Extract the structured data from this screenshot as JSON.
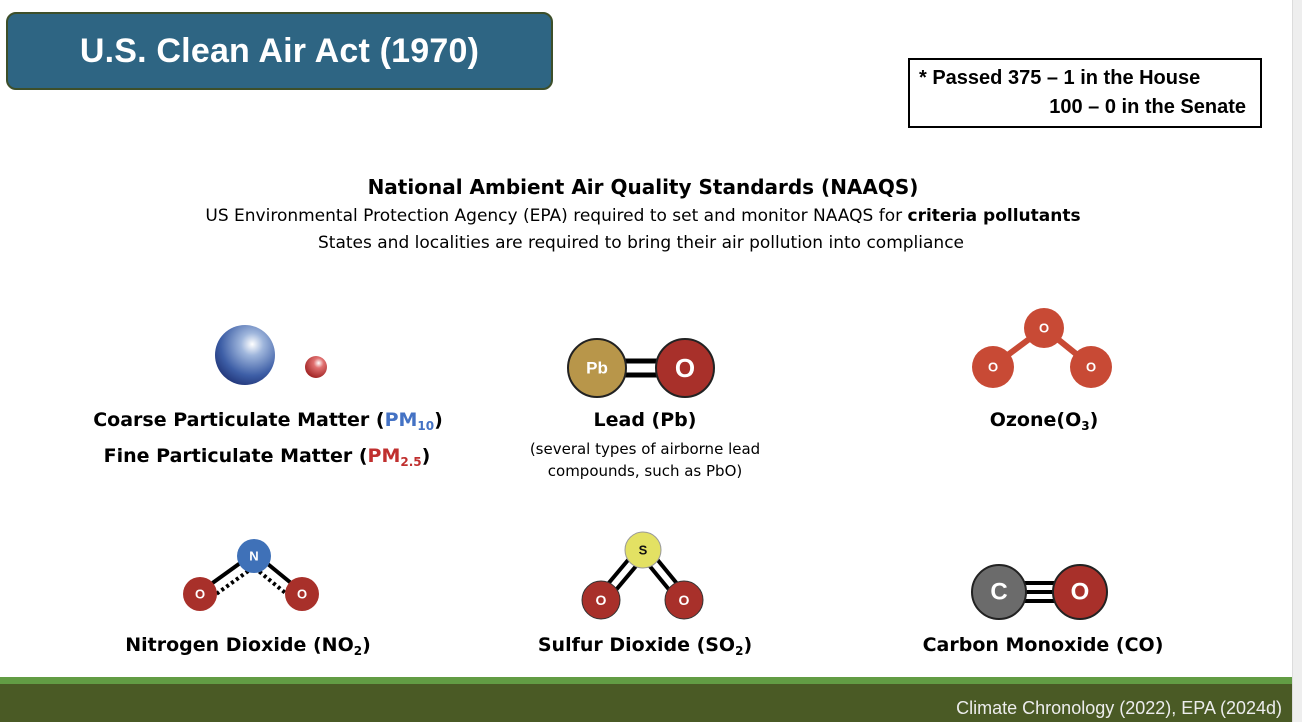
{
  "title": "U.S. Clean Air Act (1970)",
  "vote": {
    "line1": "* Passed 375 – 1 in the House",
    "line2": "100 – 0 in the Senate"
  },
  "naaqs": {
    "heading": "National Ambient Air Quality Standards (NAAQS)",
    "line1_pre": "US Environmental Protection Agency (EPA) required to set and monitor NAAQS for ",
    "line1_bold": "criteria pollutants",
    "line2": "States and localities are required to bring their air pollution into compliance"
  },
  "pollutants": {
    "pm": {
      "coarse_pre": "Coarse Particulate Matter (",
      "coarse_pm": "PM",
      "coarse_sub": "10",
      "fine_pre": "Fine Particulate Matter (",
      "fine_pm": "PM",
      "fine_sub": "2.5",
      "close": ")",
      "colors": {
        "pm10": "#4472c4",
        "pm25": "#c0302f"
      }
    },
    "lead": {
      "label": "Lead (Pb)",
      "note1": "(several types of airborne lead",
      "note2": "compounds, such as PbO)",
      "atoms": [
        "Pb",
        "O"
      ]
    },
    "ozone": {
      "label_pre": "Ozone(O",
      "label_sub": "3",
      "close": ")",
      "atoms": [
        "O",
        "O",
        "O"
      ]
    },
    "no2": {
      "label_pre": "Nitrogen Dioxide (NO",
      "label_sub": "2",
      "close": ")",
      "atoms": [
        "N",
        "O",
        "O"
      ]
    },
    "so2": {
      "label_pre": "Sulfur Dioxide (SO",
      "label_sub": "2",
      "close": ")",
      "atoms": [
        "S",
        "O",
        "O"
      ]
    },
    "co": {
      "label": "Carbon Monoxide (CO)",
      "atoms": [
        "C",
        "O"
      ]
    }
  },
  "footer": {
    "citation": "Climate Chronology (2022), EPA (2024d)"
  },
  "colors": {
    "title_bg": "#2e6583",
    "oxygen": "#a8302a",
    "ozone": "#c84a35",
    "lead": "#b8964a",
    "nitrogen": "#3f71b8",
    "sulfur": "#e3e163",
    "carbon": "#6b6b6b",
    "footer_band": "#4a5a25",
    "footer_line": "#629c44"
  }
}
